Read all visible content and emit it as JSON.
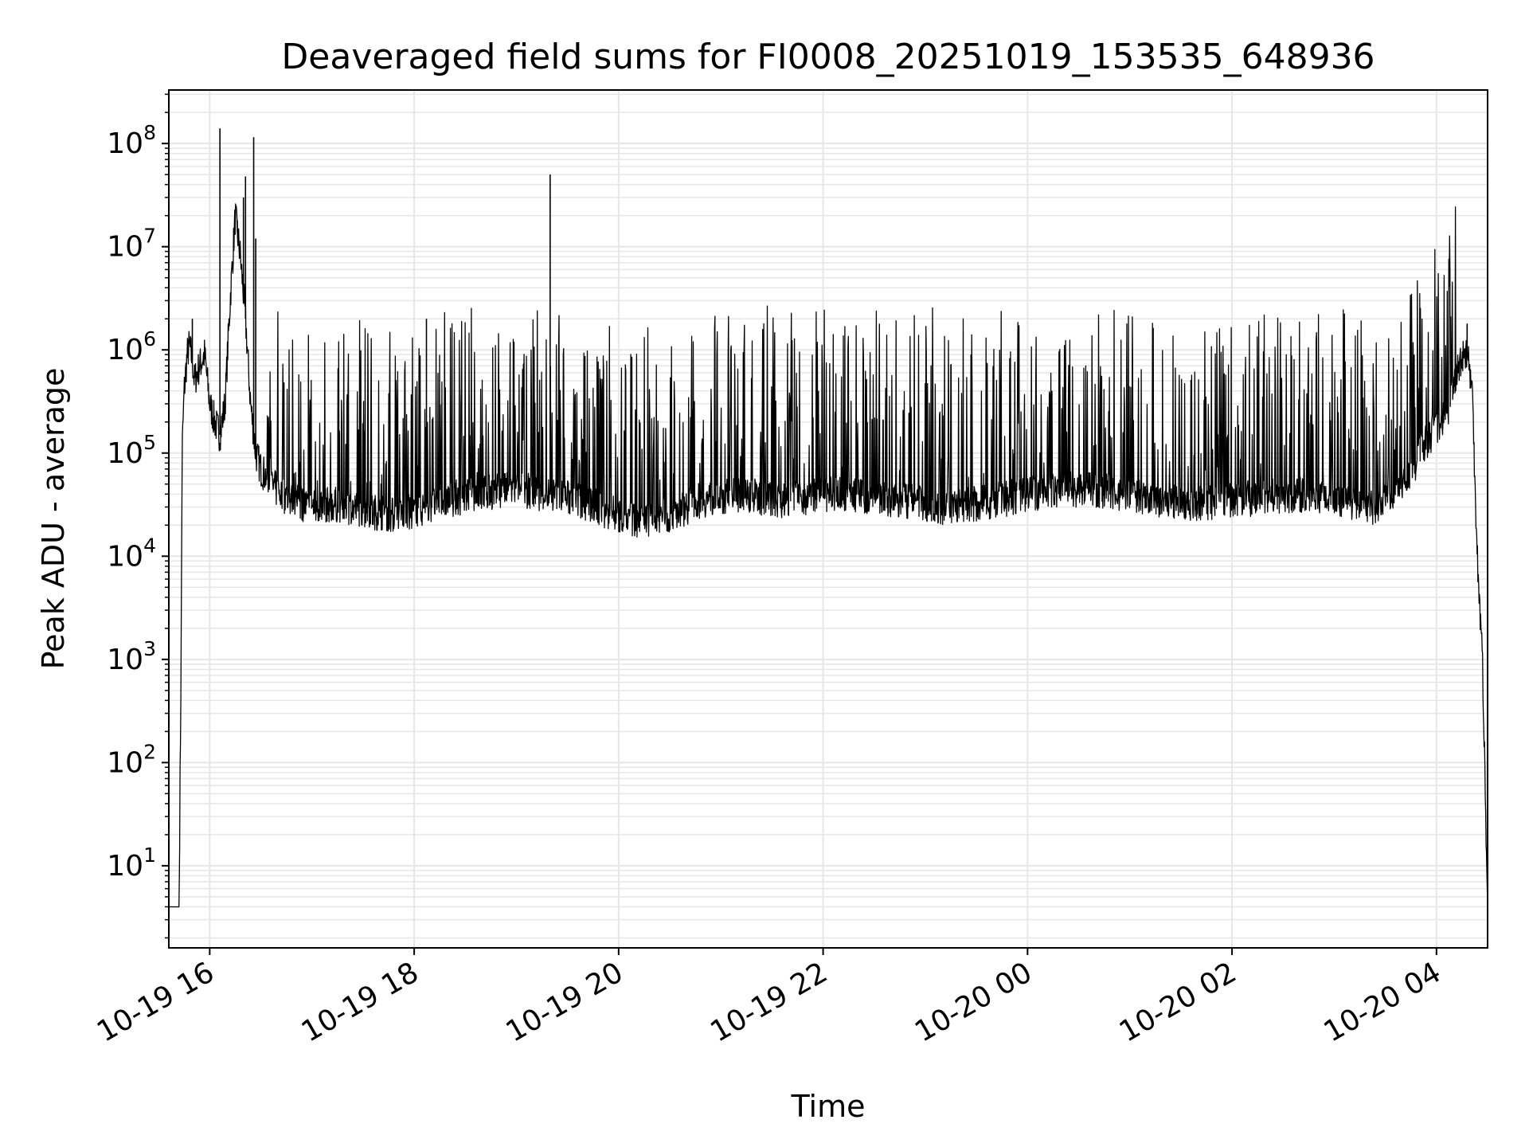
{
  "chart_data": {
    "type": "line",
    "title": "Deaveraged field sums for FI0008_20251019_153535_648936",
    "xlabel": "Time",
    "ylabel": "Peak ADU - average",
    "yscale": "log",
    "ylim": [
      1.6,
      330000000
    ],
    "xlim_hours": [
      -0.4,
      12.5
    ],
    "x_ticks": [
      {
        "hour": 0,
        "label": "10-19 16"
      },
      {
        "hour": 2,
        "label": "10-19 18"
      },
      {
        "hour": 4,
        "label": "10-19 20"
      },
      {
        "hour": 6,
        "label": "10-19 22"
      },
      {
        "hour": 8,
        "label": "10-20 00"
      },
      {
        "hour": 10,
        "label": "10-20 02"
      },
      {
        "hour": 12,
        "label": "10-20 04"
      }
    ],
    "y_ticks": [
      {
        "value": 10,
        "base": "10",
        "exp": "1"
      },
      {
        "value": 100,
        "base": "10",
        "exp": "2"
      },
      {
        "value": 1000,
        "base": "10",
        "exp": "3"
      },
      {
        "value": 10000,
        "base": "10",
        "exp": "4"
      },
      {
        "value": 100000,
        "base": "10",
        "exp": "5"
      },
      {
        "value": 1000000,
        "base": "10",
        "exp": "6"
      },
      {
        "value": 10000000,
        "base": "10",
        "exp": "7"
      },
      {
        "value": 100000000,
        "base": "10",
        "exp": "8"
      }
    ],
    "grid": true,
    "series": [
      {
        "name": "Peak ADU - average",
        "color": "#000000",
        "x_unit": "hours after 10-19 16:00",
        "x": [
          -0.4,
          -0.3,
          -0.28,
          -0.27,
          -0.25,
          -0.22,
          -0.2,
          -0.17,
          -0.15,
          -0.1,
          -0.05,
          0.0,
          0.05,
          0.1,
          0.15,
          0.2,
          0.25,
          0.3,
          0.35,
          0.4,
          0.45,
          0.5,
          0.55,
          0.6,
          0.7,
          0.8,
          1.0,
          1.2,
          1.5,
          1.8,
          2.0,
          2.3,
          2.6,
          3.0,
          3.3,
          3.6,
          4.0,
          4.2,
          4.5,
          4.8,
          5.2,
          5.6,
          6.0,
          6.4,
          6.8,
          7.2,
          7.6,
          8.0,
          8.4,
          8.8,
          9.2,
          9.6,
          10.0,
          10.4,
          10.8,
          11.1,
          11.4,
          11.6,
          11.8,
          11.9,
          12.0,
          12.1,
          12.15,
          12.2,
          12.25,
          12.3,
          12.35,
          12.4,
          12.45,
          12.5
        ],
        "y": [
          4,
          4,
          1000,
          100000,
          400000,
          900000,
          1100000,
          800000,
          500000,
          700000,
          900000,
          300000,
          200000,
          150000,
          300000,
          3000000,
          20000000,
          8000000,
          2000000,
          300000,
          100000,
          70000,
          60000,
          50000,
          40000,
          35000,
          30000,
          32000,
          28000,
          25000,
          27000,
          35000,
          40000,
          45000,
          40000,
          35000,
          25000,
          22000,
          25000,
          35000,
          40000,
          35000,
          40000,
          38000,
          35000,
          30000,
          33000,
          40000,
          45000,
          42000,
          35000,
          32000,
          35000,
          38000,
          40000,
          35000,
          30000,
          45000,
          80000,
          130000,
          180000,
          250000,
          350000,
          600000,
          900000,
          1000000,
          400000,
          10000,
          1000,
          4
        ],
        "spikes": [
          {
            "x": 0.1,
            "y": 140000000
          },
          {
            "x": 0.43,
            "y": 115000000
          },
          {
            "x": 0.35,
            "y": 48000000
          },
          {
            "x": 0.33,
            "y": 30000000
          },
          {
            "x": 0.27,
            "y": 18000000
          },
          {
            "x": 0.45,
            "y": 12000000
          },
          {
            "x": 3.33,
            "y": 50000000
          },
          {
            "x": 2.12,
            "y": 2000000
          },
          {
            "x": -0.17,
            "y": 2000000
          },
          {
            "x": 12.3,
            "y": 1800000
          }
        ]
      }
    ]
  }
}
